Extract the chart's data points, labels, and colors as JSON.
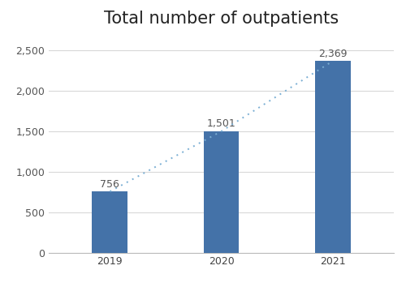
{
  "categories": [
    "2019",
    "2020",
    "2021"
  ],
  "values": [
    756,
    1501,
    2369
  ],
  "bar_color": "#4472a8",
  "line_color": "#7bafd4",
  "title": "Total number of outpatients",
  "title_fontsize": 15,
  "ylim": [
    0,
    2700
  ],
  "yticks": [
    0,
    500,
    1000,
    1500,
    2000,
    2500
  ],
  "bar_width": 0.32,
  "label_fontsize": 9,
  "tick_fontsize": 9,
  "background_color": "#ffffff",
  "grid_color": "#d8d8d8"
}
